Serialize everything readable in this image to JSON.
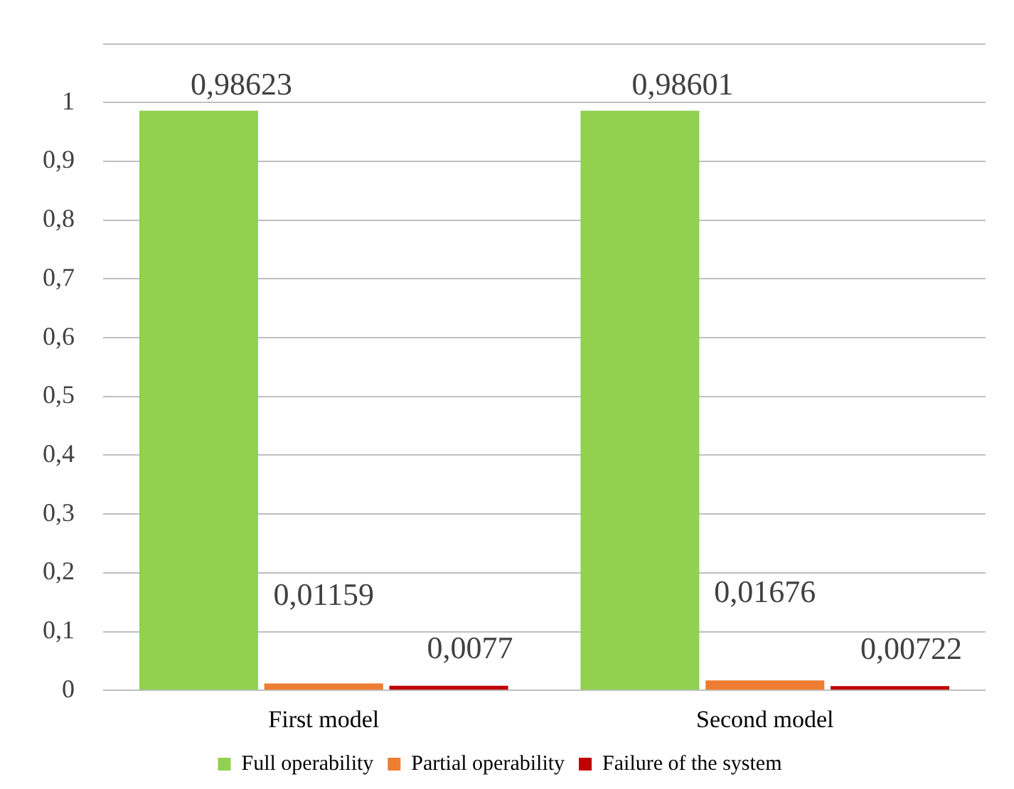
{
  "chart_data": {
    "type": "bar",
    "categories": [
      "First model",
      "Second model"
    ],
    "series": [
      {
        "name": "Full operability",
        "color": "#92d050",
        "values": [
          0.98623,
          0.98601
        ],
        "value_labels": [
          "0,98623",
          "0,98601"
        ]
      },
      {
        "name": "Partial operability",
        "color": "#ed7d31",
        "values": [
          0.01159,
          0.01676
        ],
        "value_labels": [
          "0,01159",
          "0,01676"
        ]
      },
      {
        "name": "Failure of the system",
        "color": "#c00000",
        "values": [
          0.0077,
          0.00722
        ],
        "value_labels": [
          "0,0077",
          "0,00722"
        ]
      }
    ],
    "ylim": [
      0,
      1.1
    ],
    "yticks": [
      0,
      {
        "value": 0.1,
        "label": "0,1"
      },
      {
        "value": 0.2,
        "label": "0,2"
      },
      {
        "value": 0.3,
        "label": "0,3"
      },
      {
        "value": 0.4,
        "label": "0,4"
      },
      {
        "value": 0.5,
        "label": "0,5"
      },
      {
        "value": 0.6,
        "label": "0,6"
      },
      {
        "value": 0.7,
        "label": "0,7"
      },
      {
        "value": 0.8,
        "label": "0,8"
      },
      {
        "value": 0.9,
        "label": "0,9"
      },
      1,
      {
        "value": 1.1,
        "label": null
      }
    ],
    "grid": "y",
    "legend": "bottom"
  }
}
